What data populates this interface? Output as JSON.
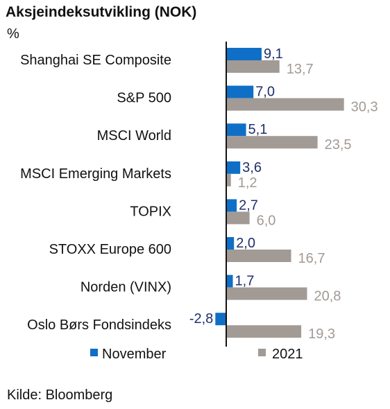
{
  "title": "Aksjeindeksutvikling (NOK)",
  "unit": "%",
  "source": "Kilde: Bloomberg",
  "colors": {
    "november": "#0f6fc6",
    "year": "#a29a95",
    "november_label": "#1f2f6b",
    "year_label": "#a29a95"
  },
  "chart_data": {
    "type": "bar",
    "orientation": "horizontal",
    "categories": [
      "Shanghai SE Composite",
      "S&P 500",
      "MSCI World",
      "MSCI Emerging Markets",
      "TOPIX",
      "STOXX Europe 600",
      "Norden (VINX)",
      "Oslo Børs Fondsindeks"
    ],
    "series": [
      {
        "name": "November",
        "values": [
          9.1,
          7.0,
          5.1,
          3.6,
          2.7,
          2.0,
          1.7,
          -2.8
        ],
        "labels": [
          "9,1",
          "7,0",
          "5,1",
          "3,6",
          "2,7",
          "2,0",
          "1,7",
          "-2,8"
        ]
      },
      {
        "name": "2021",
        "values": [
          13.7,
          30.3,
          23.5,
          1.2,
          6.0,
          16.7,
          20.8,
          19.3
        ],
        "labels": [
          "13,7",
          "30,3",
          "23,5",
          "1,2",
          "6,0",
          "16,7",
          "20,8",
          "19,3"
        ]
      }
    ],
    "legend": "bottom",
    "grid": false
  }
}
